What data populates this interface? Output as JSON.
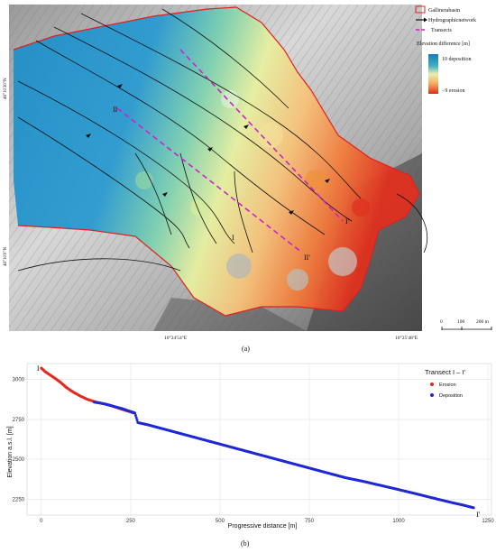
{
  "panel_a": {
    "caption": "(a)",
    "legend": {
      "basin_label": "Gallinerabasin",
      "network_label": "Hydrographicnetwork",
      "transects_label": "Transects",
      "elevation_title": "Elevation difference [m]",
      "deposition_label": "10 deposition",
      "erosion_label": "−9  erosion"
    },
    "coords": {
      "lat_top": "46°10'30\"N",
      "lat_bottom": "46°10'0\"N",
      "lon_left": "10°24'54\"E",
      "lon_right": "10°25'48\"E"
    },
    "transect_labels": {
      "i_start": "I",
      "i_end": "I'",
      "ii_start": "II",
      "ii_end": "II'"
    },
    "scalebar": {
      "zero": "0",
      "mid": "100",
      "end": "200 m"
    },
    "colors": {
      "deposition": "#1e8fc8",
      "erosion": "#e8361e",
      "basin_outline": "#e02020",
      "transects": "#cc22cc"
    }
  },
  "panel_b": {
    "caption": "(b)",
    "start_label": "I",
    "end_label": "I'",
    "chart_data": {
      "type": "scatter",
      "title": "Transect I – I'",
      "xlabel": "Progressive distance [m]",
      "ylabel": "Elevation a.s.l. [m]",
      "xlim": [
        -40,
        1260
      ],
      "ylim": [
        2150,
        3100
      ],
      "xticks": [
        0,
        250,
        500,
        750,
        1000,
        1250
      ],
      "yticks": [
        2250,
        2500,
        2750,
        3000
      ],
      "xtick_labels": [
        "0",
        "250",
        "500",
        "750",
        "1000",
        "1250"
      ],
      "ytick_labels": [
        "2250",
        "2500",
        "2750",
        "3000"
      ],
      "legend_position": "top-right",
      "grid": true,
      "series": [
        {
          "name": "Erosion",
          "color": "#e8281e",
          "x": [
            0,
            10,
            20,
            30,
            40,
            55,
            70,
            90,
            110,
            130,
            150,
            170,
            190,
            210,
            230,
            245,
            258
          ],
          "y": [
            3072,
            3050,
            3035,
            3020,
            3005,
            2980,
            2950,
            2920,
            2895,
            2875,
            2860,
            2850,
            2840,
            2825,
            2810,
            2800,
            2790
          ]
        },
        {
          "name": "Deposition",
          "color": "#1e28d8",
          "x": [
            148,
            175,
            200,
            225,
            262,
            270,
            300,
            350,
            400,
            450,
            500,
            550,
            600,
            650,
            700,
            750,
            800,
            850,
            900,
            950,
            1000,
            1050,
            1100,
            1150,
            1180,
            1210
          ],
          "y": [
            2858,
            2848,
            2833,
            2818,
            2790,
            2730,
            2715,
            2685,
            2655,
            2625,
            2595,
            2565,
            2535,
            2505,
            2475,
            2445,
            2415,
            2385,
            2362,
            2336,
            2310,
            2283,
            2255,
            2228,
            2213,
            2196
          ]
        }
      ]
    }
  }
}
